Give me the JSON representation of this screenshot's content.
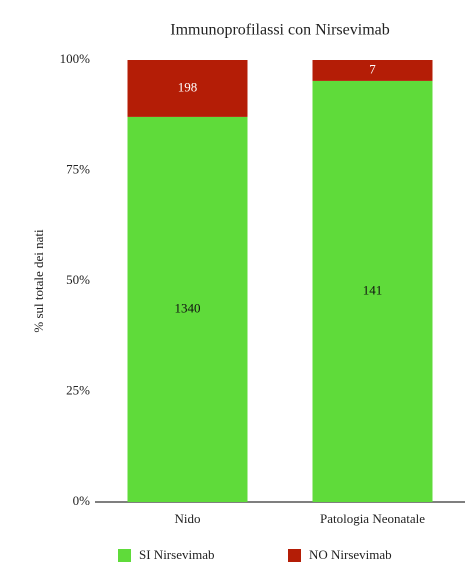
{
  "chart_data": {
    "type": "bar",
    "stacking": "percent",
    "title": "Immunoprofilassi con Nirsevimab",
    "y_label": "% sul totale dei nati",
    "categories": [
      "Nido",
      "Patologia Neonatale"
    ],
    "series": [
      {
        "name": "SI Nirsevimab",
        "color": "#5fdb3a",
        "label_color": "#111111",
        "values": [
          1340,
          141
        ]
      },
      {
        "name": "NO Nirsevimab",
        "color": "#b41d06",
        "label_color": "#ffffff",
        "values": [
          198,
          7
        ]
      }
    ],
    "ylim": [
      0,
      100
    ],
    "yticks": [
      {
        "value": 0,
        "label": "0%"
      },
      {
        "value": 25,
        "label": "25%"
      },
      {
        "value": 50,
        "label": "50%"
      },
      {
        "value": 75,
        "label": "75%"
      },
      {
        "value": 100,
        "label": "100%"
      }
    ],
    "grid": false,
    "legend": "bottom"
  }
}
